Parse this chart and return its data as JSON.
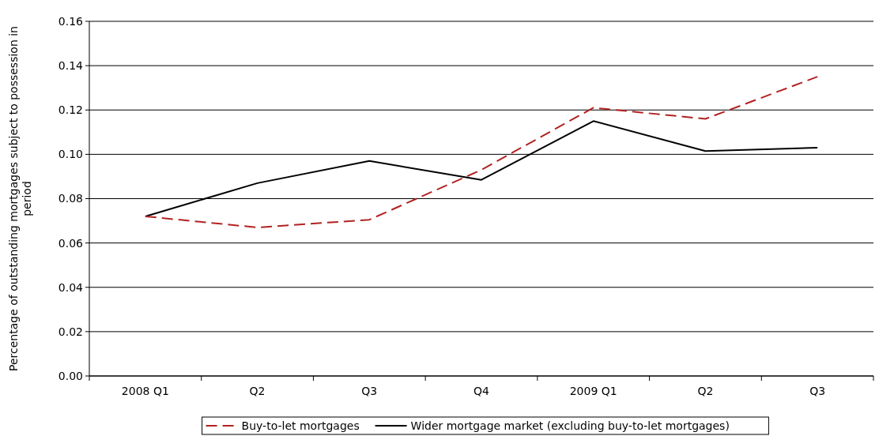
{
  "chart_data": {
    "type": "line",
    "ylabel": "Percentage of outstanding mortgages subject to possession in period",
    "categories": [
      "2008 Q1",
      "Q2",
      "Q3",
      "Q4",
      "2009 Q1",
      "Q2",
      "Q3"
    ],
    "series": [
      {
        "name": "Buy-to-let mortgages",
        "color": "#b22222",
        "line_style": "dashed",
        "values": [
          0.072,
          0.067,
          0.0705,
          0.093,
          0.121,
          0.116,
          0.135
        ]
      },
      {
        "name": "Wider mortgage market (excluding buy-to-let mortgages)",
        "color": "#000000",
        "line_style": "solid",
        "values": [
          0.072,
          0.087,
          0.097,
          0.0885,
          0.115,
          0.1015,
          0.103
        ]
      }
    ],
    "ylim": [
      0,
      0.16
    ],
    "yticks": [
      {
        "value": 0,
        "label": "0.00"
      },
      0.02,
      0.04,
      0.06,
      0.08,
      {
        "value": 0.1,
        "label": "0.10"
      },
      0.12,
      0.14,
      0.16
    ],
    "grid": "y",
    "legend": "bottom",
    "marker": "none"
  }
}
